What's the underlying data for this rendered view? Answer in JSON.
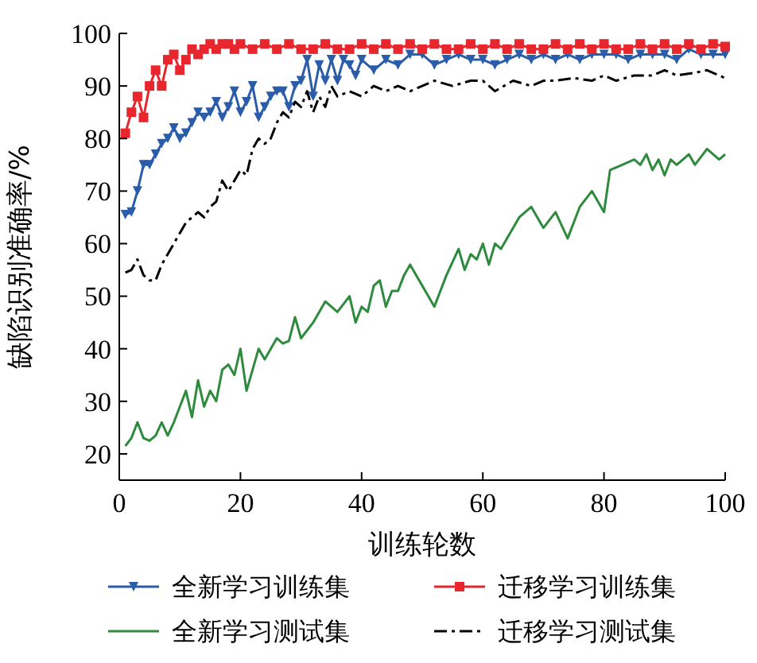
{
  "chart_data": {
    "type": "line",
    "xlabel": "训练轮数",
    "ylabel": "缺陷识别准确率/%",
    "xlim": [
      0,
      100
    ],
    "ylim": [
      15,
      100
    ],
    "xticks": [
      0,
      20,
      40,
      60,
      80,
      100
    ],
    "yticks": [
      20,
      30,
      40,
      50,
      60,
      70,
      80,
      90,
      100
    ],
    "grid": false,
    "legend": "bottom",
    "series": [
      {
        "name": "全新学习训练集",
        "color": "#2a5caa",
        "marker": "triangle",
        "line_style": "solid",
        "x": [
          1,
          2,
          3,
          4,
          5,
          6,
          7,
          8,
          9,
          10,
          11,
          12,
          13,
          14,
          15,
          16,
          17,
          18,
          19,
          20,
          21,
          22,
          23,
          24,
          25,
          26,
          27,
          28,
          29,
          30,
          31,
          32,
          33,
          34,
          35,
          36,
          37,
          38,
          39,
          40,
          42,
          44,
          46,
          48,
          50,
          52,
          54,
          56,
          58,
          60,
          62,
          64,
          66,
          68,
          70,
          72,
          74,
          76,
          78,
          80,
          82,
          84,
          86,
          88,
          90,
          92,
          94,
          96,
          98,
          100
        ],
        "values": [
          65.5,
          66,
          70,
          75,
          75,
          77,
          79,
          80,
          82,
          80,
          81,
          83,
          85,
          84,
          85,
          87,
          84,
          86,
          89,
          85,
          87,
          90,
          84,
          86,
          88,
          89,
          89,
          86,
          90,
          91,
          95,
          88,
          94,
          91,
          95,
          91,
          95,
          94,
          92,
          95,
          93,
          95,
          94,
          96,
          96,
          94,
          95,
          96,
          95,
          95,
          94,
          95,
          96,
          95,
          96,
          95,
          96,
          95,
          96,
          96,
          96,
          95,
          96,
          96,
          96,
          95,
          97,
          96,
          96,
          96
        ]
      },
      {
        "name": "迁移学习训练集",
        "color": "#e8262d",
        "marker": "square",
        "line_style": "solid",
        "x": [
          1,
          2,
          3,
          4,
          5,
          6,
          7,
          8,
          9,
          10,
          11,
          12,
          13,
          14,
          15,
          16,
          17,
          18,
          19,
          20,
          22,
          24,
          26,
          28,
          30,
          32,
          34,
          36,
          38,
          40,
          42,
          44,
          46,
          48,
          50,
          52,
          54,
          56,
          58,
          60,
          62,
          64,
          66,
          68,
          70,
          72,
          74,
          76,
          78,
          80,
          82,
          84,
          86,
          88,
          90,
          92,
          94,
          96,
          98,
          100
        ],
        "values": [
          81,
          85,
          88,
          84,
          90,
          93,
          90,
          95,
          96,
          93,
          95,
          97,
          96,
          97,
          98,
          97,
          98,
          98,
          97,
          98,
          97,
          98,
          97,
          98,
          97,
          97,
          98,
          97,
          97,
          98,
          97,
          98,
          97,
          98,
          97,
          98,
          97,
          97,
          98,
          97,
          98,
          97,
          98,
          97,
          97,
          98,
          97,
          98,
          97,
          98,
          97,
          97,
          98,
          97,
          98,
          97,
          98,
          97,
          98,
          97.5
        ]
      },
      {
        "name": "全新学习测试集",
        "color": "#2e8b3e",
        "marker": "none",
        "line_style": "solid",
        "x": [
          1,
          2,
          3,
          4,
          5,
          6,
          7,
          8,
          9,
          10,
          11,
          12,
          13,
          14,
          15,
          16,
          17,
          18,
          19,
          20,
          21,
          22,
          23,
          24,
          25,
          26,
          27,
          28,
          29,
          30,
          32,
          34,
          36,
          38,
          39,
          40,
          41,
          42,
          43,
          44,
          45,
          46,
          47,
          48,
          49,
          50,
          51,
          52,
          54,
          56,
          57,
          58,
          59,
          60,
          61,
          62,
          63,
          64,
          66,
          68,
          70,
          72,
          74,
          76,
          78,
          80,
          81,
          83,
          85,
          86,
          87,
          88,
          89,
          90,
          91,
          92,
          94,
          95,
          97,
          99,
          100
        ],
        "values": [
          21.5,
          23,
          26,
          23,
          22.5,
          23.5,
          26,
          23.5,
          26,
          29,
          32,
          27,
          34,
          29,
          32,
          30,
          36,
          37,
          35,
          40,
          32,
          36,
          40,
          38,
          40,
          42,
          41,
          41.5,
          46,
          42,
          45,
          49,
          47,
          50,
          45,
          48,
          47,
          52,
          53,
          48,
          51,
          51,
          54,
          56,
          54,
          52,
          50,
          48,
          54,
          59,
          55,
          58,
          57,
          60,
          56,
          60,
          59,
          61,
          65,
          67,
          63,
          66,
          61,
          67,
          70,
          66,
          74,
          75,
          76,
          75,
          77,
          74,
          76,
          73,
          76,
          75,
          77,
          75,
          78,
          76,
          77
        ]
      },
      {
        "name": "迁移学习测试集",
        "color": "#000000",
        "marker": "none",
        "line_style": "dashdot",
        "x": [
          1,
          2,
          3,
          4,
          5,
          6,
          7,
          8,
          9,
          10,
          11,
          12,
          13,
          14,
          15,
          16,
          17,
          18,
          19,
          20,
          21,
          22,
          23,
          24,
          25,
          26,
          27,
          28,
          29,
          30,
          31,
          32,
          33,
          34,
          35,
          36,
          38,
          40,
          42,
          44,
          46,
          48,
          50,
          52,
          55,
          58,
          60,
          62,
          65,
          68,
          70,
          72,
          75,
          78,
          80,
          82,
          85,
          88,
          90,
          92,
          95,
          97,
          99,
          100
        ],
        "values": [
          54.5,
          55,
          57,
          54,
          53,
          53,
          56,
          58,
          60,
          62,
          64,
          65,
          66,
          65,
          67,
          68,
          72,
          70,
          72,
          74,
          73,
          78,
          80,
          79,
          80,
          83,
          85,
          84,
          87,
          86,
          89,
          85,
          88,
          86,
          90,
          88,
          89,
          88,
          90,
          89,
          90,
          89,
          90,
          91,
          90,
          91,
          91,
          89,
          91,
          90,
          91,
          91,
          91.5,
          91,
          92,
          91,
          92,
          92,
          93,
          92,
          92.5,
          93,
          92,
          91.5
        ]
      }
    ]
  }
}
